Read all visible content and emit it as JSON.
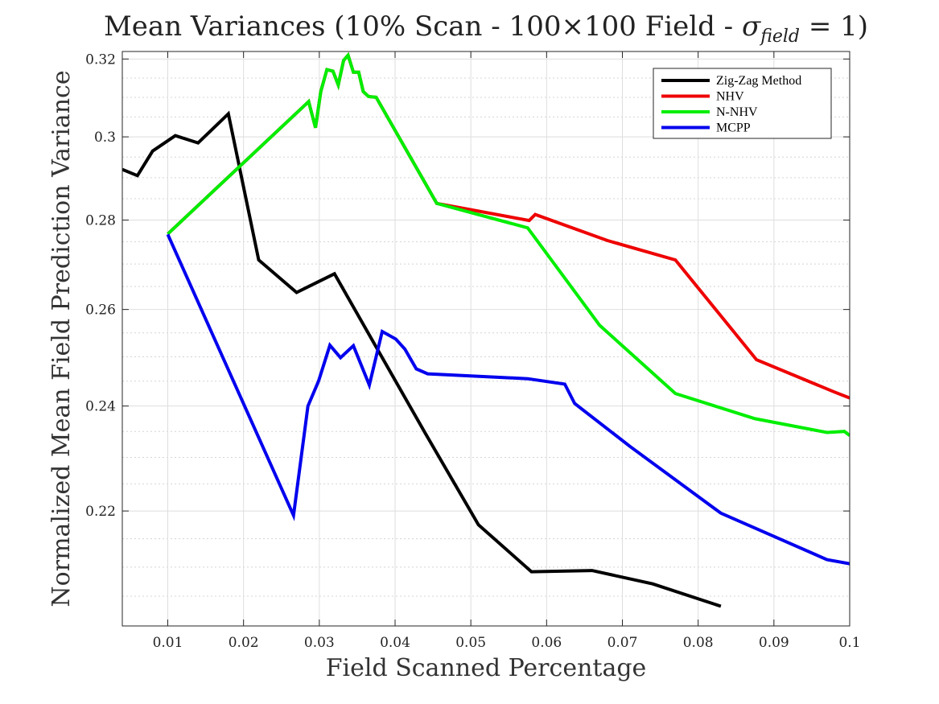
{
  "chart_data": {
    "type": "line",
    "title": "Mean Variances (10% Scan - 100×100 Field - σ_field = 1)",
    "title_parts": {
      "main": "Mean Variances (10% Scan - 100×100 Field - ",
      "sigma": "σ",
      "sigma_sub": "field",
      "tail": " = 1)"
    },
    "xlabel": "Field Scanned Percentage",
    "ylabel": "Normalized Mean Field Prediction Variance",
    "xlim": [
      0.004,
      0.1
    ],
    "ylim": [
      0.2,
      0.322
    ],
    "y_scale": "log",
    "xticks": [
      0.01,
      0.02,
      0.03,
      0.04,
      0.05,
      0.06,
      0.07,
      0.08,
      0.09,
      0.1
    ],
    "xtick_labels": [
      "0.01",
      "0.02",
      "0.03",
      "0.04",
      "0.05",
      "0.06",
      "0.07",
      "0.08",
      "0.09",
      "0.1"
    ],
    "yticks": [
      0.22,
      0.24,
      0.26,
      0.28,
      0.3,
      0.32
    ],
    "ytick_labels": [
      "0.22",
      "0.24",
      "0.26",
      "0.28",
      "0.3",
      "0.32"
    ],
    "y_minor_ticks": [
      0.205,
      0.21,
      0.215,
      0.225,
      0.23,
      0.235,
      0.245,
      0.25,
      0.255,
      0.265,
      0.27,
      0.275,
      0.285,
      0.29,
      0.295,
      0.305,
      0.31,
      0.315
    ],
    "grid": true,
    "legend_position": "top-right",
    "series": [
      {
        "name": "Zig-Zag Method",
        "color": "#000000",
        "x": [
          0.004,
          0.006,
          0.008,
          0.011,
          0.014,
          0.018,
          0.022,
          0.027,
          0.032,
          0.044,
          0.051,
          0.058,
          0.066,
          0.074,
          0.083
        ],
        "y": [
          0.292,
          0.2905,
          0.2965,
          0.3003,
          0.2985,
          0.3058,
          0.2709,
          0.2637,
          0.2678,
          0.2346,
          0.2175,
          0.2092,
          0.2094,
          0.2071,
          0.2033
        ]
      },
      {
        "name": "NHV",
        "color": "#ee0000",
        "x": [
          0.01,
          0.0286,
          0.0295,
          0.0302,
          0.031,
          0.0318,
          0.0325,
          0.0332,
          0.0338,
          0.0345,
          0.0352,
          0.0358,
          0.0365,
          0.0375,
          0.0455,
          0.0577,
          0.0585,
          0.068,
          0.077,
          0.0877,
          0.098,
          0.1
        ],
        "y": [
          0.2768,
          0.3089,
          0.3023,
          0.3115,
          0.3172,
          0.3168,
          0.3132,
          0.3196,
          0.321,
          0.3165,
          0.3165,
          0.3115,
          0.3102,
          0.31,
          0.2839,
          0.2799,
          0.2813,
          0.2753,
          0.2709,
          0.2494,
          0.2428,
          0.2416
        ]
      },
      {
        "name": "N-NHV",
        "color": "#00ee00",
        "x": [
          0.01,
          0.0286,
          0.0295,
          0.0302,
          0.031,
          0.0318,
          0.0325,
          0.0332,
          0.0338,
          0.0345,
          0.0352,
          0.0358,
          0.0365,
          0.0375,
          0.0455,
          0.0575,
          0.067,
          0.077,
          0.0875,
          0.097,
          0.0993,
          0.1
        ],
        "y": [
          0.2768,
          0.3089,
          0.3023,
          0.3115,
          0.3172,
          0.3168,
          0.3132,
          0.3196,
          0.321,
          0.3165,
          0.3165,
          0.3115,
          0.3102,
          0.31,
          0.2839,
          0.2782,
          0.2566,
          0.2425,
          0.2375,
          0.2348,
          0.235,
          0.2342
        ]
      },
      {
        "name": "MCPP",
        "color": "#0000ee",
        "x": [
          0.01,
          0.0266,
          0.0285,
          0.0299,
          0.0314,
          0.0328,
          0.0345,
          0.0366,
          0.0383,
          0.0401,
          0.0413,
          0.0428,
          0.0443,
          0.0575,
          0.0624,
          0.0637,
          0.071,
          0.083,
          0.097,
          0.1
        ],
        "y": [
          0.2767,
          0.2192,
          0.24,
          0.245,
          0.2524,
          0.2498,
          0.2523,
          0.2442,
          0.2553,
          0.2537,
          0.2516,
          0.2475,
          0.2465,
          0.2455,
          0.2444,
          0.2405,
          0.2321,
          0.2196,
          0.2113,
          0.2106
        ]
      }
    ]
  }
}
